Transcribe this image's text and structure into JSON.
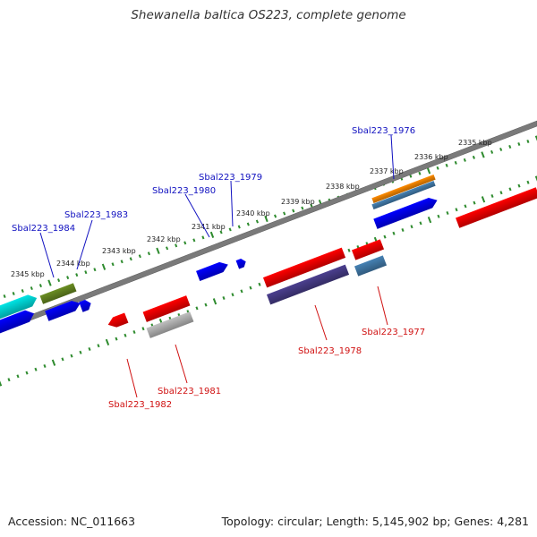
{
  "title": "Shewanella baltica OS223, complete genome",
  "footer": {
    "accession": "Accession: NC_011663",
    "summary": "Topology: circular; Length: 5,145,902 bp; Genes: 4,281"
  },
  "colors": {
    "backbone": "#7a7a7a",
    "tick_dots": "#2e8b2e",
    "forward_label": "#1010c0",
    "reverse_label": "#d01010"
  },
  "scale_labels": [
    "2335 kbp",
    "2336 kbp",
    "2337 kbp",
    "2338 kbp",
    "2339 kbp",
    "2340 kbp",
    "2341 kbp",
    "2342 kbp",
    "2343 kbp",
    "2344 kbp",
    "2345 kbp"
  ],
  "gene_labels": [
    {
      "name": "Sbal223_1976",
      "strand": "forward"
    },
    {
      "name": "Sbal223_1979",
      "strand": "forward"
    },
    {
      "name": "Sbal223_1980",
      "strand": "forward"
    },
    {
      "name": "Sbal223_1983",
      "strand": "forward"
    },
    {
      "name": "Sbal223_1984",
      "strand": "forward"
    },
    {
      "name": "Sbal223_1977",
      "strand": "reverse"
    },
    {
      "name": "Sbal223_1978",
      "strand": "reverse"
    },
    {
      "name": "Sbal223_1981",
      "strand": "reverse"
    },
    {
      "name": "Sbal223_1982",
      "strand": "reverse"
    }
  ],
  "feature_colors": [
    "#00e5e5",
    "#6b8e23",
    "#0000ff",
    "#ff0000",
    "#c0c0c0",
    "#4b3f8f",
    "#4682b4",
    "#ff8c00"
  ]
}
